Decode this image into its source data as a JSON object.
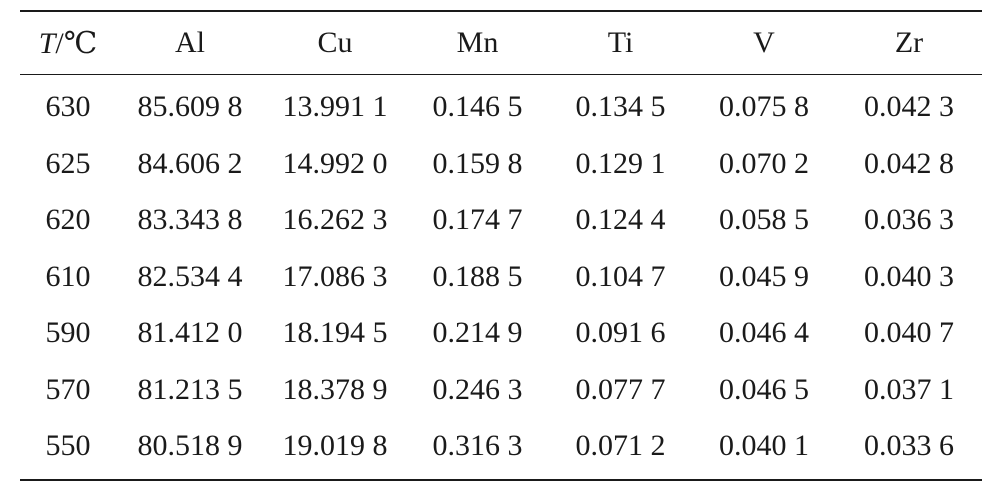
{
  "table": {
    "header": {
      "temp_symbol": "T",
      "temp_unit": "/℃",
      "elements": [
        "Al",
        "Cu",
        "Mn",
        "Ti",
        "V",
        "Zr"
      ]
    },
    "rows": [
      {
        "t": "630",
        "values": [
          "85.609 8",
          "13.991 1",
          "0.146 5",
          "0.134 5",
          "0.075 8",
          "0.042 3"
        ]
      },
      {
        "t": "625",
        "values": [
          "84.606 2",
          "14.992 0",
          "0.159 8",
          "0.129 1",
          "0.070 2",
          "0.042 8"
        ]
      },
      {
        "t": "620",
        "values": [
          "83.343 8",
          "16.262 3",
          "0.174 7",
          "0.124 4",
          "0.058 5",
          "0.036 3"
        ]
      },
      {
        "t": "610",
        "values": [
          "82.534 4",
          "17.086 3",
          "0.188 5",
          "0.104 7",
          "0.045 9",
          "0.040 3"
        ]
      },
      {
        "t": "590",
        "values": [
          "81.412 0",
          "18.194 5",
          "0.214 9",
          "0.091 6",
          "0.046 4",
          "0.040 7"
        ]
      },
      {
        "t": "570",
        "values": [
          "81.213 5",
          "18.378 9",
          "0.246 3",
          "0.077 7",
          "0.046 5",
          "0.037 1"
        ]
      },
      {
        "t": "550",
        "values": [
          "80.518 9",
          "19.019 8",
          "0.316 3",
          "0.071 2",
          "0.040 1",
          "0.033 6"
        ]
      }
    ]
  }
}
